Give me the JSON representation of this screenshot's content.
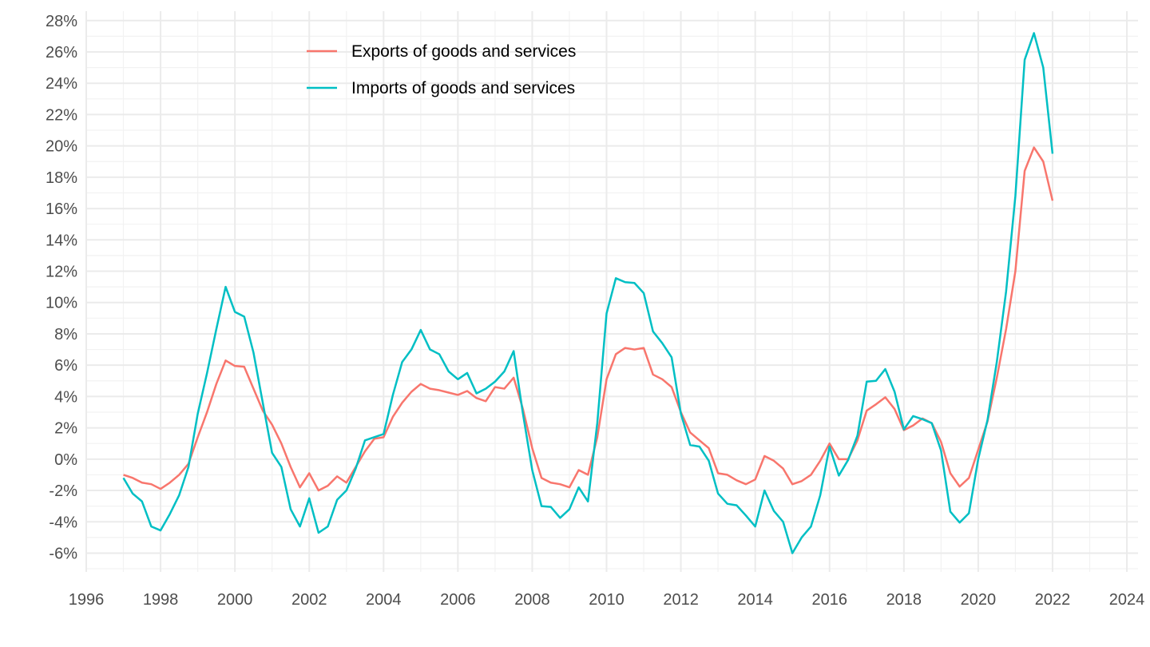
{
  "chart_data": {
    "type": "line",
    "title": "",
    "xlabel": "",
    "ylabel": "",
    "xlim": [
      1996,
      2024.3
    ],
    "ylim": [
      -7.2,
      28.6
    ],
    "x_ticks": [
      1996,
      1998,
      2000,
      2002,
      2004,
      2006,
      2008,
      2010,
      2012,
      2014,
      2016,
      2018,
      2020,
      2022,
      2024
    ],
    "x_tick_labels": [
      "1996",
      "1998",
      "2000",
      "2002",
      "2004",
      "2006",
      "2008",
      "2010",
      "2012",
      "2014",
      "2016",
      "2018",
      "2020",
      "2022",
      "2024"
    ],
    "y_ticks": [
      -6,
      -4,
      -2,
      0,
      2,
      4,
      6,
      8,
      10,
      12,
      14,
      16,
      18,
      20,
      22,
      24,
      26,
      28
    ],
    "y_tick_labels": [
      "-6%",
      "-4%",
      "-2%",
      "0%",
      "2%",
      "4%",
      "6%",
      "8%",
      "10%",
      "12%",
      "14%",
      "16%",
      "18%",
      "20%",
      "22%",
      "24%",
      "26%",
      "28%"
    ],
    "grid": true,
    "legend_position": "top-left inside",
    "x": [
      1997.0,
      1997.25,
      1997.5,
      1997.75,
      1998.0,
      1998.25,
      1998.5,
      1998.75,
      1999.0,
      1999.25,
      1999.5,
      1999.75,
      2000.0,
      2000.25,
      2000.5,
      2000.75,
      2001.0,
      2001.25,
      2001.5,
      2001.75,
      2002.0,
      2002.25,
      2002.5,
      2002.75,
      2003.0,
      2003.25,
      2003.5,
      2003.75,
      2004.0,
      2004.25,
      2004.5,
      2004.75,
      2005.0,
      2005.25,
      2005.5,
      2005.75,
      2006.0,
      2006.25,
      2006.5,
      2006.75,
      2007.0,
      2007.25,
      2007.5,
      2007.75,
      2008.0,
      2008.25,
      2008.5,
      2008.75,
      2009.0,
      2009.25,
      2009.5,
      2009.75,
      2010.0,
      2010.25,
      2010.5,
      2010.75,
      2011.0,
      2011.25,
      2011.5,
      2011.75,
      2012.0,
      2012.25,
      2012.5,
      2012.75,
      2013.0,
      2013.25,
      2013.5,
      2013.75,
      2014.0,
      2014.25,
      2014.5,
      2014.75,
      2015.0,
      2015.25,
      2015.5,
      2015.75,
      2016.0,
      2016.25,
      2016.5,
      2016.75,
      2017.0,
      2017.25,
      2017.5,
      2017.75,
      2018.0,
      2018.25,
      2018.5,
      2018.75,
      2019.0,
      2019.25,
      2019.5,
      2019.75,
      2020.0,
      2020.25,
      2020.5,
      2020.75,
      2021.0,
      2021.25,
      2021.5,
      2021.75,
      2022.0
    ],
    "series": [
      {
        "name": "Exports of goods and services",
        "color": "#f8766d",
        "values": [
          -1.0,
          -1.2,
          -1.5,
          -1.6,
          -1.9,
          -1.5,
          -1.0,
          -0.3,
          1.4,
          3.0,
          4.8,
          6.3,
          5.95,
          5.9,
          4.5,
          3.1,
          2.2,
          1.0,
          -0.5,
          -1.8,
          -0.9,
          -2.0,
          -1.7,
          -1.1,
          -1.5,
          -0.5,
          0.5,
          1.3,
          1.4,
          2.7,
          3.6,
          4.3,
          4.8,
          4.5,
          4.4,
          4.25,
          4.1,
          4.35,
          3.9,
          3.7,
          4.6,
          4.5,
          5.2,
          3.2,
          0.7,
          -1.2,
          -1.5,
          -1.6,
          -1.8,
          -0.7,
          -1.0,
          1.4,
          5.1,
          6.7,
          7.1,
          7.0,
          7.1,
          5.4,
          5.1,
          4.6,
          3.0,
          1.7,
          1.2,
          0.7,
          -0.9,
          -1.0,
          -1.35,
          -1.6,
          -1.3,
          0.2,
          -0.1,
          -0.6,
          -1.6,
          -1.4,
          -1.0,
          -0.1,
          1.0,
          0.0,
          0.0,
          1.2,
          3.1,
          3.5,
          3.95,
          3.2,
          1.85,
          2.15,
          2.6,
          2.3,
          1.1,
          -0.9,
          -1.75,
          -1.2,
          0.6,
          2.4,
          5.2,
          8.3,
          12.0,
          18.4,
          19.9,
          19.0,
          16.5
        ]
      },
      {
        "name": "Imports of goods and services",
        "color": "#00bfc4",
        "values": [
          -1.2,
          -2.2,
          -2.7,
          -4.3,
          -4.55,
          -3.5,
          -2.3,
          -0.5,
          2.9,
          5.5,
          8.3,
          11.0,
          9.4,
          9.1,
          6.8,
          3.6,
          0.4,
          -0.5,
          -3.2,
          -4.3,
          -2.5,
          -4.7,
          -4.3,
          -2.6,
          -2.0,
          -0.6,
          1.2,
          1.4,
          1.6,
          4.1,
          6.2,
          7.0,
          8.25,
          7.0,
          6.7,
          5.6,
          5.1,
          5.5,
          4.2,
          4.5,
          4.95,
          5.6,
          6.9,
          2.9,
          -0.7,
          -3.0,
          -3.05,
          -3.75,
          -3.2,
          -1.8,
          -2.7,
          2.3,
          9.3,
          11.55,
          11.3,
          11.25,
          10.6,
          8.15,
          7.4,
          6.5,
          2.9,
          0.9,
          0.8,
          -0.1,
          -2.2,
          -2.85,
          -2.95,
          -3.6,
          -4.3,
          -2.0,
          -3.3,
          -4.0,
          -6.0,
          -5.0,
          -4.3,
          -2.3,
          0.8,
          -1.05,
          -0.05,
          1.5,
          4.95,
          5.0,
          5.75,
          4.3,
          1.9,
          2.75,
          2.55,
          2.3,
          0.55,
          -3.35,
          -4.05,
          -3.45,
          0.0,
          2.5,
          6.2,
          10.7,
          16.8,
          25.5,
          27.2,
          25.0,
          19.5
        ]
      }
    ]
  }
}
